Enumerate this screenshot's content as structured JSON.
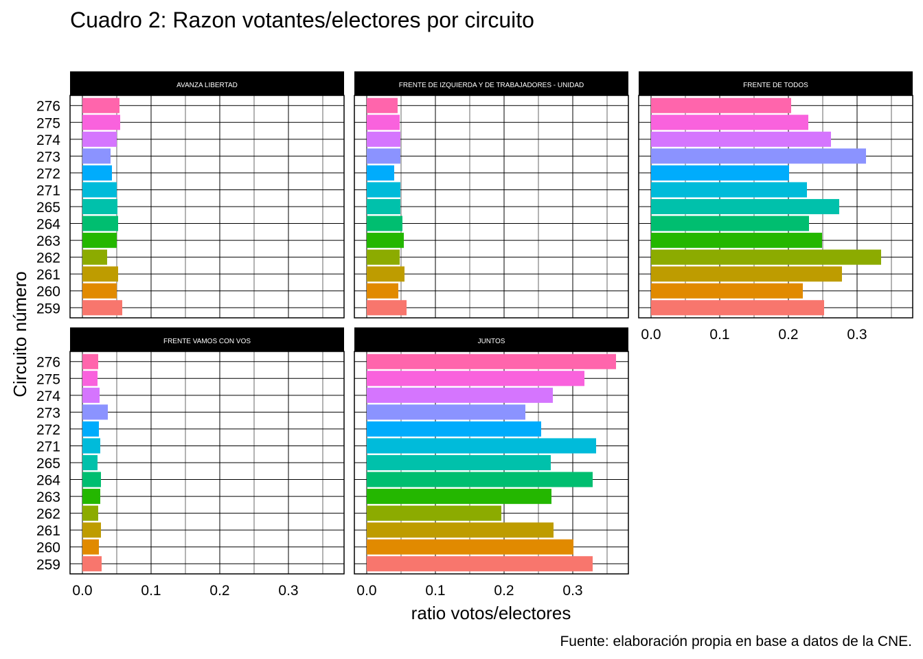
{
  "chart_data": {
    "type": "bar",
    "orientation": "horizontal",
    "title": "Cuadro 2: Razon votantes/electores por circuito",
    "xlabel": "ratio votos/electores",
    "ylabel": "Circuito número",
    "caption": "Fuente: elaboración propia en base a datos de la CNE.",
    "xlim": [
      -0.018,
      0.381
    ],
    "x_ticks": [
      "0.0",
      "0.1",
      "0.2",
      "0.3"
    ],
    "x_tick_values": [
      0,
      0.1,
      0.2,
      0.3
    ],
    "grid": true,
    "legend": "none",
    "categories": [
      "259",
      "260",
      "261",
      "262",
      "263",
      "264",
      "265",
      "271",
      "272",
      "273",
      "274",
      "275",
      "276"
    ],
    "colors": [
      "#F8766D",
      "#E18A00",
      "#BE9C00",
      "#8CAB00",
      "#24B700",
      "#00BE70",
      "#00C1AB",
      "#00BBDA",
      "#00ACFC",
      "#8B93FF",
      "#D575FE",
      "#F962DD",
      "#FF65AC"
    ],
    "facets": [
      {
        "name": "AVANZA LIBERTAD",
        "values": [
          0.058,
          0.05,
          0.052,
          0.036,
          0.05,
          0.052,
          0.051,
          0.05,
          0.043,
          0.041,
          0.05,
          0.055,
          0.054
        ]
      },
      {
        "name": "FRENTE DE IZQUIERDA Y DE TRABAJADORES - UNIDAD",
        "values": [
          0.058,
          0.046,
          0.055,
          0.048,
          0.054,
          0.052,
          0.049,
          0.049,
          0.04,
          0.049,
          0.049,
          0.048,
          0.045
        ]
      },
      {
        "name": "FRENTE DE TODOS",
        "values": [
          0.252,
          0.221,
          0.278,
          0.335,
          0.249,
          0.23,
          0.274,
          0.227,
          0.201,
          0.313,
          0.262,
          0.229,
          0.204
        ]
      },
      {
        "name": "FRENTE VAMOS CON VOS",
        "values": [
          0.028,
          0.024,
          0.027,
          0.023,
          0.026,
          0.027,
          0.022,
          0.026,
          0.024,
          0.037,
          0.025,
          0.022,
          0.023
        ]
      },
      {
        "name": "JUNTOS",
        "values": [
          0.329,
          0.301,
          0.272,
          0.196,
          0.269,
          0.329,
          0.268,
          0.334,
          0.254,
          0.231,
          0.271,
          0.317,
          0.363
        ]
      }
    ]
  }
}
